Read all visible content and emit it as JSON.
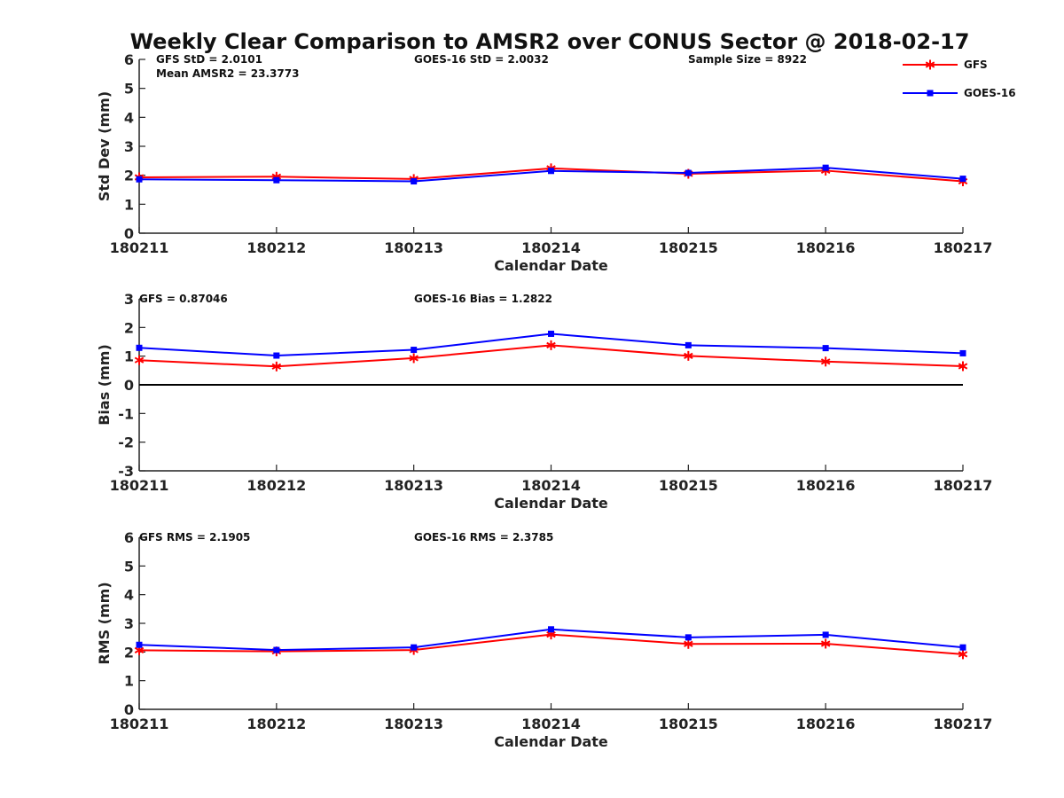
{
  "chart_data": {
    "title": "Weekly Clear Comparison to AMSR2 over CONUS Sector @ 2018-02-17",
    "type": "line",
    "x": [
      "180211",
      "180212",
      "180213",
      "180214",
      "180215",
      "180216",
      "180217"
    ],
    "legend": {
      "placement": "top-right",
      "entries": [
        "GFS",
        "GOES-16"
      ]
    },
    "series_style": {
      "GFS": {
        "color": "#ff0000",
        "marker": "asterisk"
      },
      "GOES-16": {
        "color": "#0000ff",
        "marker": "square"
      }
    },
    "panels": [
      {
        "id": "std",
        "ylabel": "Std Dev (mm)",
        "xlabel": "Calendar Date",
        "ylim": [
          0,
          6
        ],
        "yticks": [
          "0",
          "1",
          "2",
          "3",
          "4",
          "5",
          "6"
        ],
        "zero_line": false,
        "annotations": [
          [
            "GFS StD = 2.0101",
            "Mean AMSR2 = 23.3773"
          ],
          [
            "GOES-16 StD = 2.0032"
          ],
          [
            "Sample Size = 8922"
          ]
        ],
        "series": [
          {
            "name": "GFS",
            "values": [
              1.93,
              1.95,
              1.87,
              2.24,
              2.05,
              2.16,
              1.79
            ]
          },
          {
            "name": "GOES-16",
            "values": [
              1.86,
              1.83,
              1.79,
              2.15,
              2.08,
              2.26,
              1.88
            ]
          }
        ]
      },
      {
        "id": "bias",
        "ylabel": "Bias (mm)",
        "xlabel": "Calendar Date",
        "ylim": [
          -3,
          3
        ],
        "yticks": [
          "-3",
          "-2",
          "-1",
          "0",
          "1",
          "2",
          "3"
        ],
        "zero_line": true,
        "annotations": [
          [
            "GFS = 0.87046"
          ],
          [
            "GOES-16 Bias  = 1.2822"
          ]
        ],
        "series": [
          {
            "name": "GFS",
            "values": [
              0.86,
              0.64,
              0.93,
              1.38,
              1.01,
              0.81,
              0.65
            ]
          },
          {
            "name": "GOES-16",
            "values": [
              1.29,
              1.02,
              1.22,
              1.78,
              1.38,
              1.28,
              1.1
            ]
          }
        ]
      },
      {
        "id": "rms",
        "ylabel": "RMS (mm)",
        "xlabel": "Calendar Date",
        "ylim": [
          0,
          6
        ],
        "yticks": [
          "0",
          "1",
          "2",
          "3",
          "4",
          "5",
          "6"
        ],
        "zero_line": false,
        "annotations": [
          [
            "GFS RMS = 2.1905"
          ],
          [
            "GOES-16 RMS = 2.3785"
          ]
        ],
        "series": [
          {
            "name": "GFS",
            "values": [
              2.06,
              2.02,
              2.07,
              2.61,
              2.28,
              2.29,
              1.92
            ]
          },
          {
            "name": "GOES-16",
            "values": [
              2.25,
              2.07,
              2.16,
              2.79,
              2.51,
              2.6,
              2.16
            ]
          }
        ]
      }
    ]
  }
}
